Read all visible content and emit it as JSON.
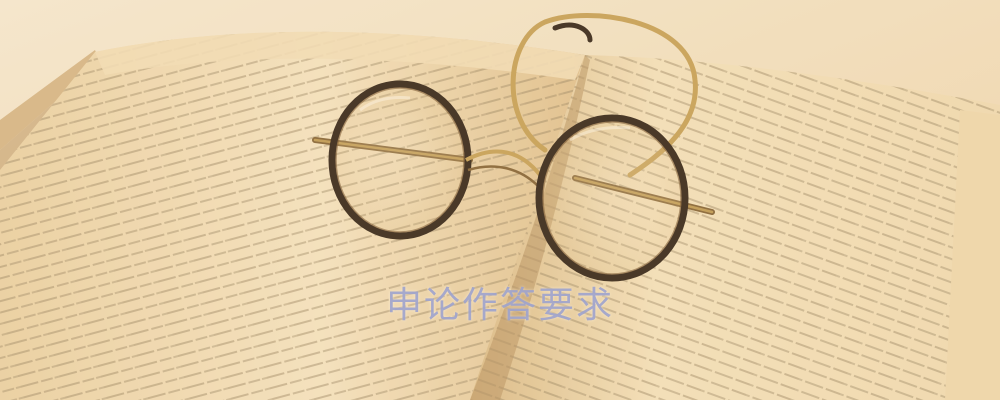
{
  "caption": {
    "text": "申论作答要求"
  },
  "palette": {
    "background": "#f4e3c4",
    "page_light": "#f5e2bc",
    "page_shadow": "#dcc092",
    "text_lines": "#9c8866",
    "glasses_rim": "#3d2e20",
    "glasses_gold": "#c9a45c",
    "caption": "#9ba0cd"
  },
  "scene": {
    "subject": "glasses-on-open-book"
  }
}
